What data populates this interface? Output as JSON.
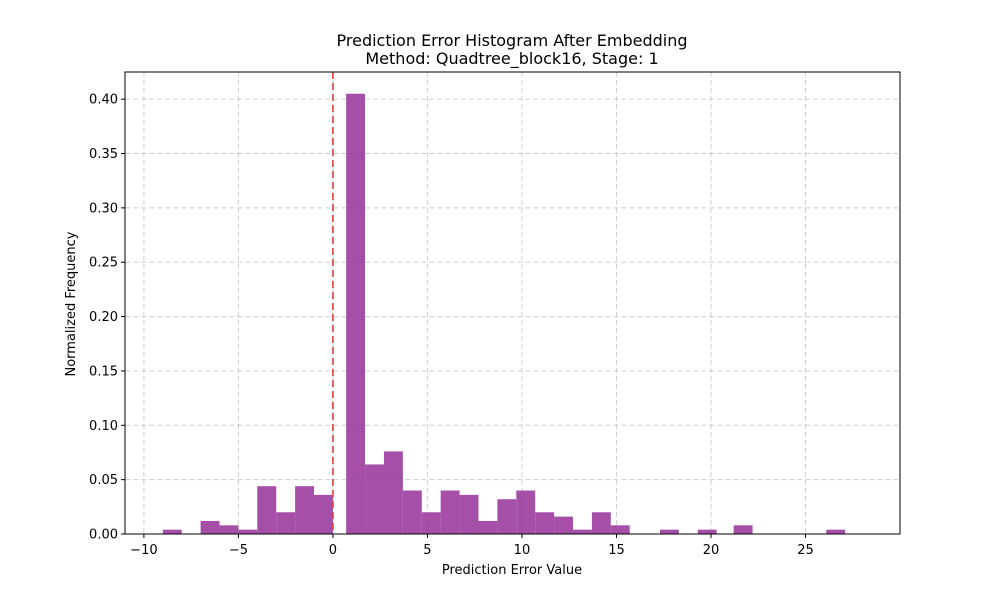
{
  "chart_data": {
    "type": "bar",
    "title_line1": "Prediction Error Histogram After Embedding",
    "title_line2": "Method: Quadtree_block16, Stage: 1",
    "xlabel": "Prediction Error Value",
    "ylabel": "Normalized Frequency",
    "xlim": [
      -11,
      30
    ],
    "ylim": [
      0,
      0.425
    ],
    "xticks": [
      -10,
      -5,
      0,
      5,
      10,
      15,
      20,
      25
    ],
    "xtick_labels": [
      "−10",
      "−5",
      "0",
      "5",
      "10",
      "15",
      "20",
      "25"
    ],
    "yticks": [
      0.0,
      0.05,
      0.1,
      0.15,
      0.2,
      0.25,
      0.3,
      0.35,
      0.4
    ],
    "ytick_labels": [
      "0.00",
      "0.05",
      "0.10",
      "0.15",
      "0.20",
      "0.25",
      "0.30",
      "0.35",
      "0.40"
    ],
    "grid": true,
    "bar_color": "#9b3c9f",
    "threshold_line": {
      "x": 0,
      "color": "#e03c3c",
      "style": "dashed"
    },
    "bins": [
      {
        "x0": -9.0,
        "x1": -8.0,
        "y": 0.004
      },
      {
        "x0": -7.0,
        "x1": -6.0,
        "y": 0.012
      },
      {
        "x0": -6.0,
        "x1": -5.0,
        "y": 0.008
      },
      {
        "x0": -5.0,
        "x1": -4.0,
        "y": 0.004
      },
      {
        "x0": -4.0,
        "x1": -3.0,
        "y": 0.044
      },
      {
        "x0": -3.0,
        "x1": -2.0,
        "y": 0.02
      },
      {
        "x0": -2.0,
        "x1": -1.0,
        "y": 0.044
      },
      {
        "x0": -1.0,
        "x1": 0.0,
        "y": 0.036
      },
      {
        "x0": 0.7,
        "x1": 1.7,
        "y": 0.405
      },
      {
        "x0": 1.7,
        "x1": 2.7,
        "y": 0.064
      },
      {
        "x0": 2.7,
        "x1": 3.7,
        "y": 0.076
      },
      {
        "x0": 3.7,
        "x1": 4.7,
        "y": 0.04
      },
      {
        "x0": 4.7,
        "x1": 5.7,
        "y": 0.02
      },
      {
        "x0": 5.7,
        "x1": 6.7,
        "y": 0.04
      },
      {
        "x0": 6.7,
        "x1": 7.7,
        "y": 0.036
      },
      {
        "x0": 7.7,
        "x1": 8.7,
        "y": 0.012
      },
      {
        "x0": 8.7,
        "x1": 9.7,
        "y": 0.032
      },
      {
        "x0": 9.7,
        "x1": 10.7,
        "y": 0.04
      },
      {
        "x0": 10.7,
        "x1": 11.7,
        "y": 0.02
      },
      {
        "x0": 11.7,
        "x1": 12.7,
        "y": 0.016
      },
      {
        "x0": 12.7,
        "x1": 13.7,
        "y": 0.004
      },
      {
        "x0": 13.7,
        "x1": 14.7,
        "y": 0.02
      },
      {
        "x0": 14.7,
        "x1": 15.7,
        "y": 0.008
      },
      {
        "x0": 17.3,
        "x1": 18.3,
        "y": 0.004
      },
      {
        "x0": 19.3,
        "x1": 20.3,
        "y": 0.004
      },
      {
        "x0": 21.2,
        "x1": 22.2,
        "y": 0.008
      },
      {
        "x0": 26.1,
        "x1": 27.1,
        "y": 0.004
      }
    ]
  }
}
